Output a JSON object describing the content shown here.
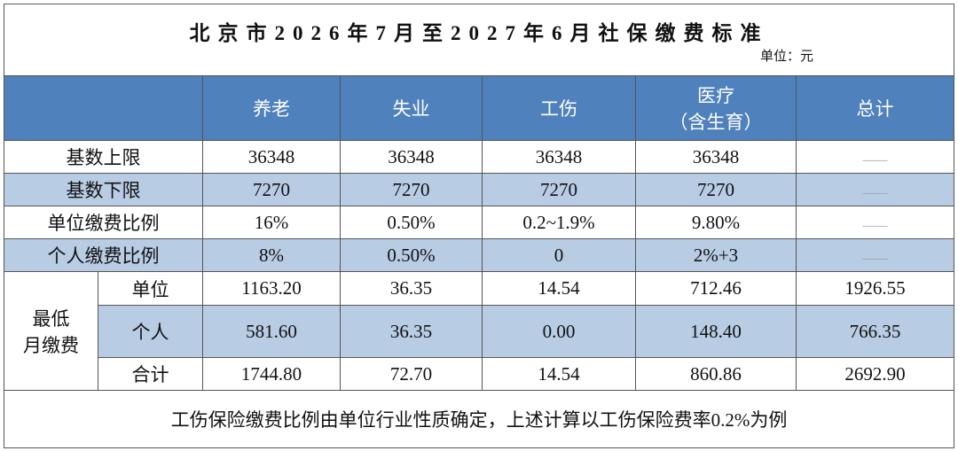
{
  "header": {
    "title": "北京市2026年7月至2027年6月社保缴费标准",
    "unit": "单位：元"
  },
  "table": {
    "columns": [
      "养老",
      "失业",
      "工伤",
      [
        "医疗",
        "（含生育）"
      ],
      "总计"
    ],
    "rows": [
      {
        "label": "基数上限",
        "cells": [
          "36348",
          "36348",
          "36348",
          "36348",
          "____"
        ]
      },
      {
        "label": "基数下限",
        "cells": [
          "7270",
          "7270",
          "7270",
          "7270",
          "____"
        ]
      },
      {
        "label": "单位缴费比例",
        "cells": [
          "16%",
          "0.50%",
          "0.2~1.9%",
          "9.80%",
          "____"
        ]
      },
      {
        "label": "个人缴费比例",
        "cells": [
          "8%",
          "0.50%",
          "0",
          "2%+3",
          "____"
        ]
      }
    ],
    "min_group": {
      "label": [
        "最低",
        "月缴费"
      ],
      "rows": [
        {
          "label": "单位",
          "cells": [
            "1163.20",
            "36.35",
            "14.54",
            "712.46",
            "1926.55"
          ]
        },
        {
          "label": "个人",
          "cells": [
            "581.60",
            "36.35",
            "0.00",
            "148.40",
            "766.35"
          ]
        },
        {
          "label": "合计",
          "cells": [
            "1744.80",
            "72.70",
            "14.54",
            "860.86",
            "2692.90"
          ]
        }
      ]
    }
  },
  "footer": {
    "note": "工伤保险缴费比例由单位行业性质确定，上述计算以工伤保险费率0.2%为例"
  }
}
